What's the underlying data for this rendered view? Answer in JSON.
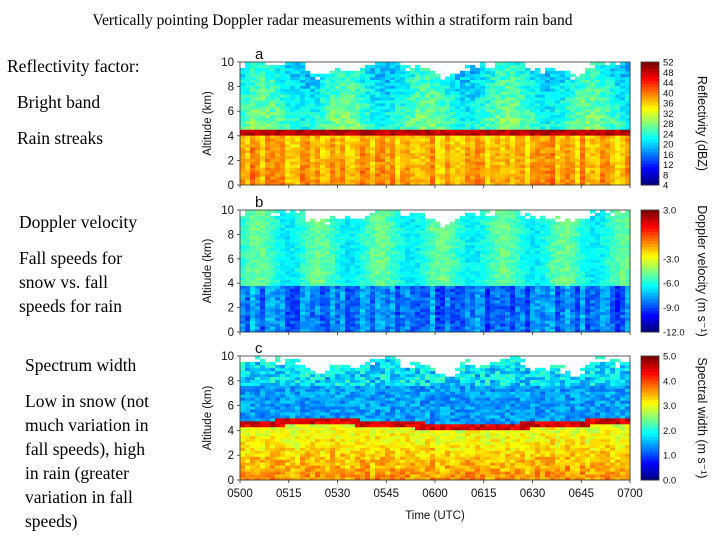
{
  "title": "Vertically pointing Doppler radar measurements within a stratiform rain band",
  "notes": {
    "reflectivity_heading": "Reflectivity factor:",
    "bright_band": "Bright band",
    "rain_streaks": "Rain streaks",
    "doppler_heading": "Doppler velocity",
    "doppler_desc": [
      "Fall speeds for",
      "snow vs. fall",
      "speeds for rain"
    ],
    "width_heading": "Spectrum width",
    "width_desc": [
      "Low in snow (not",
      "much variation in",
      "fall speeds), high",
      "in rain (greater",
      "variation in fall",
      "speeds)"
    ]
  },
  "chart_data": {
    "type": "heatmap",
    "xlabel": "Time (UTC)",
    "x_ticks": [
      "0500",
      "0515",
      "0530",
      "0545",
      "0600",
      "0615",
      "0630",
      "0645",
      "0700"
    ],
    "panels": [
      {
        "label": "a",
        "ylabel": "Altitude (km)",
        "ylim": [
          0,
          10
        ],
        "y_ticks": [
          "0",
          "2",
          "4",
          "6",
          "8",
          "10"
        ],
        "colorbar_label": "Reflectivity (dBZ)",
        "colorbar_ticks": [
          "4",
          "8",
          "12",
          "16",
          "20",
          "24",
          "28",
          "32",
          "36",
          "40",
          "44",
          "48",
          "52"
        ],
        "bright_band_altitude_km": 4.3,
        "echo_top_km": 10
      },
      {
        "label": "b",
        "ylabel": "Altitude (km)",
        "ylim": [
          0,
          10
        ],
        "y_ticks": [
          "0",
          "2",
          "4",
          "6",
          "8",
          "10"
        ],
        "colorbar_label": "Doppler velocity (m s⁻¹)",
        "colorbar_ticks": [
          "-12.0",
          "-9.0",
          "-6.0",
          "-3.0",
          "3.0"
        ],
        "melting_level_km": 4.0
      },
      {
        "label": "c",
        "ylabel": "Altitude (km)",
        "ylim": [
          0,
          10
        ],
        "y_ticks": [
          "0",
          "2",
          "4",
          "6",
          "8",
          "10"
        ],
        "colorbar_label": "Spectral width (m s⁻¹)",
        "colorbar_ticks": [
          "0.0",
          "1.0",
          "2.0",
          "3.0",
          "4.0",
          "5.0"
        ],
        "melting_level_km": 4.5
      }
    ]
  },
  "colors": {
    "background": "#ffffff",
    "text": "#000000"
  }
}
